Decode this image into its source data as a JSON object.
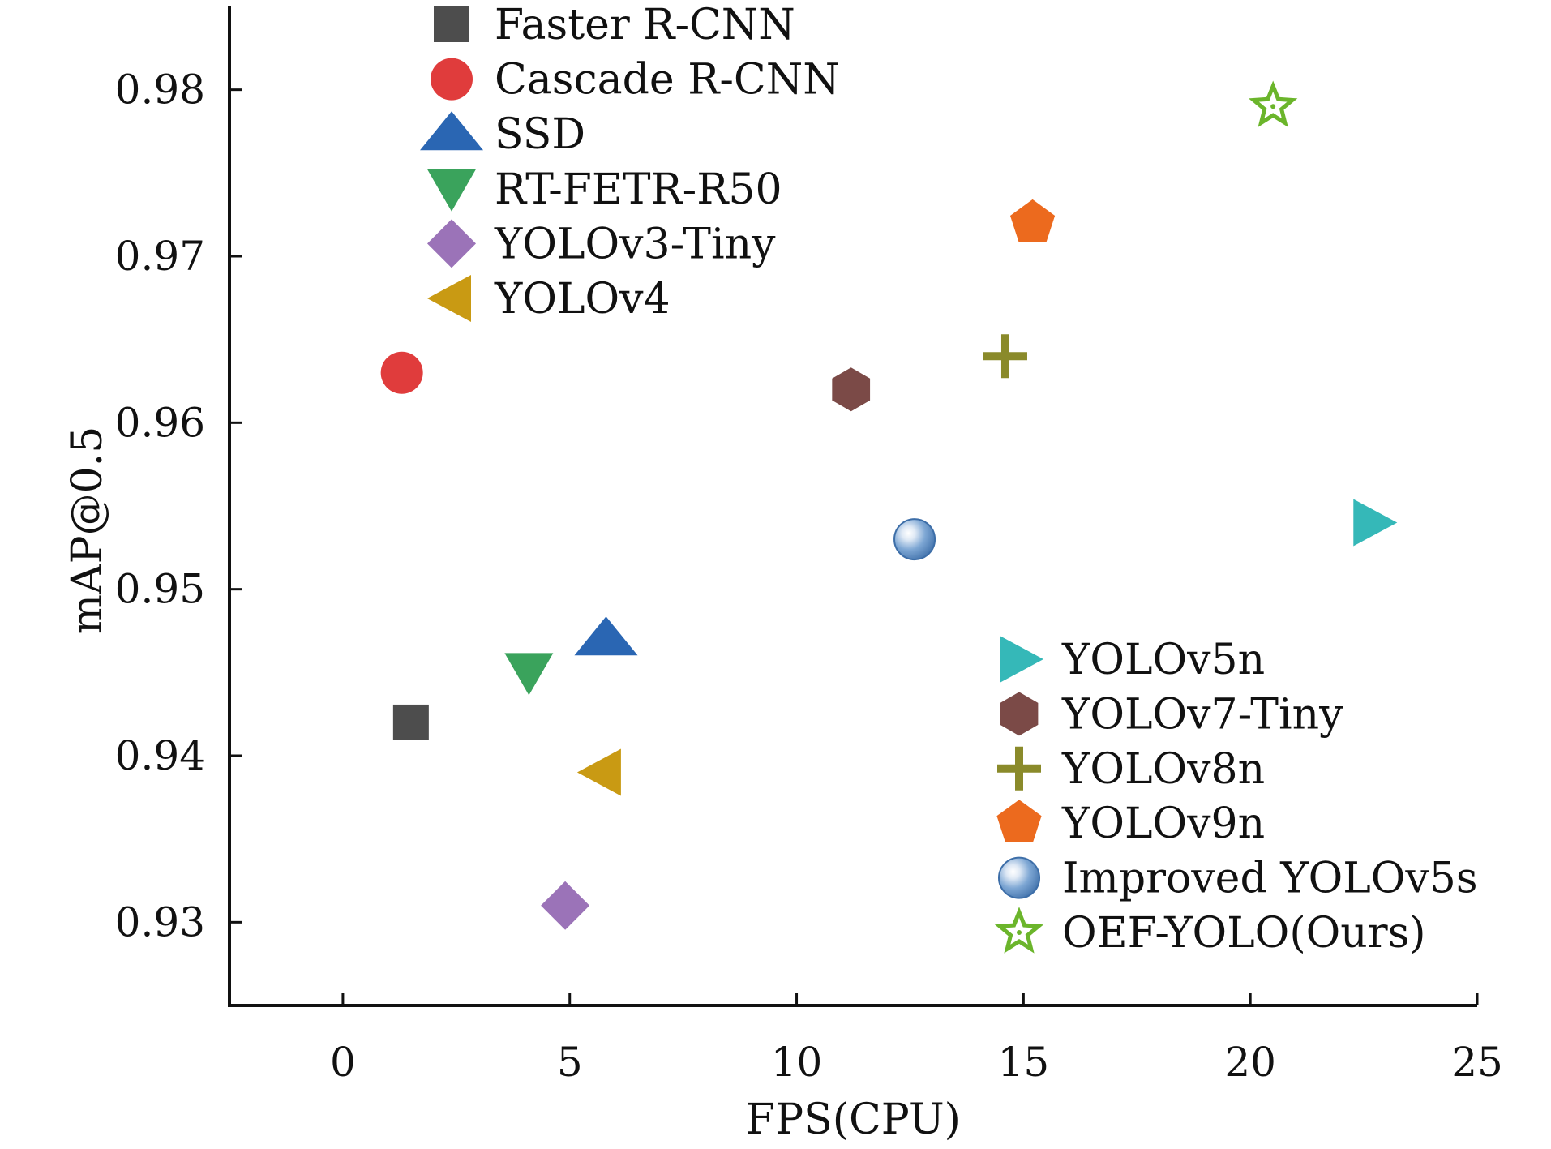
{
  "chart_data": {
    "type": "scatter",
    "xlabel": "FPS(CPU)",
    "ylabel": "mAP@0.5",
    "xlim": [
      -2.5,
      25
    ],
    "ylim": [
      0.925,
      0.985
    ],
    "xticks": [
      "0",
      "5",
      "10",
      "15",
      "20",
      "25"
    ],
    "yticks": [
      "0.93",
      "0.94",
      "0.95",
      "0.96",
      "0.97",
      "0.98"
    ],
    "grid": false,
    "legend_placement": [
      "top-left",
      "bottom-right"
    ],
    "series": [
      {
        "name": "Faster R-CNN",
        "x": 1.5,
        "y": 0.942,
        "marker": "square",
        "color": "#4d4d4d"
      },
      {
        "name": "Cascade R-CNN",
        "x": 1.3,
        "y": 0.963,
        "marker": "circle",
        "color": "#e03c3c"
      },
      {
        "name": "SSD",
        "x": 5.8,
        "y": 0.947,
        "marker": "triangle-up",
        "color": "#2a66b3"
      },
      {
        "name": "RT-FETR-R50",
        "x": 4.1,
        "y": 0.945,
        "marker": "triangle-down",
        "color": "#3aa35c"
      },
      {
        "name": "YOLOv3-Tiny",
        "x": 4.9,
        "y": 0.931,
        "marker": "diamond",
        "color": "#9b73b8"
      },
      {
        "name": "YOLOv4",
        "x": 5.7,
        "y": 0.939,
        "marker": "triangle-left",
        "color": "#c99a13"
      },
      {
        "name": "YOLOv5n",
        "x": 22.7,
        "y": 0.954,
        "marker": "triangle-right",
        "color": "#35b8b8"
      },
      {
        "name": "YOLOv7-Tiny",
        "x": 11.2,
        "y": 0.962,
        "marker": "hexagon",
        "color": "#7b4a47"
      },
      {
        "name": "YOLOv8n",
        "x": 14.6,
        "y": 0.964,
        "marker": "plus",
        "color": "#8a8a2a"
      },
      {
        "name": "YOLOv9n",
        "x": 15.2,
        "y": 0.972,
        "marker": "pentagon",
        "color": "#ec6a1e"
      },
      {
        "name": "Improved YOLOv5s",
        "x": 12.6,
        "y": 0.953,
        "marker": "sphere",
        "color": "#6a97c8"
      },
      {
        "name": "OEF-YOLO(Ours)",
        "x": 20.5,
        "y": 0.979,
        "marker": "star",
        "color": "#6bb52b"
      }
    ],
    "legend": [
      [
        "Faster R-CNN",
        "Cascade R-CNN",
        "SSD",
        "RT-FETR-R50",
        "YOLOv3-Tiny",
        "YOLOv4"
      ],
      [
        "YOLOv5n",
        "YOLOv7-Tiny",
        "YOLOv8n",
        "YOLOv9n",
        "Improved YOLOv5s",
        "OEF-YOLO(Ours)"
      ]
    ]
  }
}
